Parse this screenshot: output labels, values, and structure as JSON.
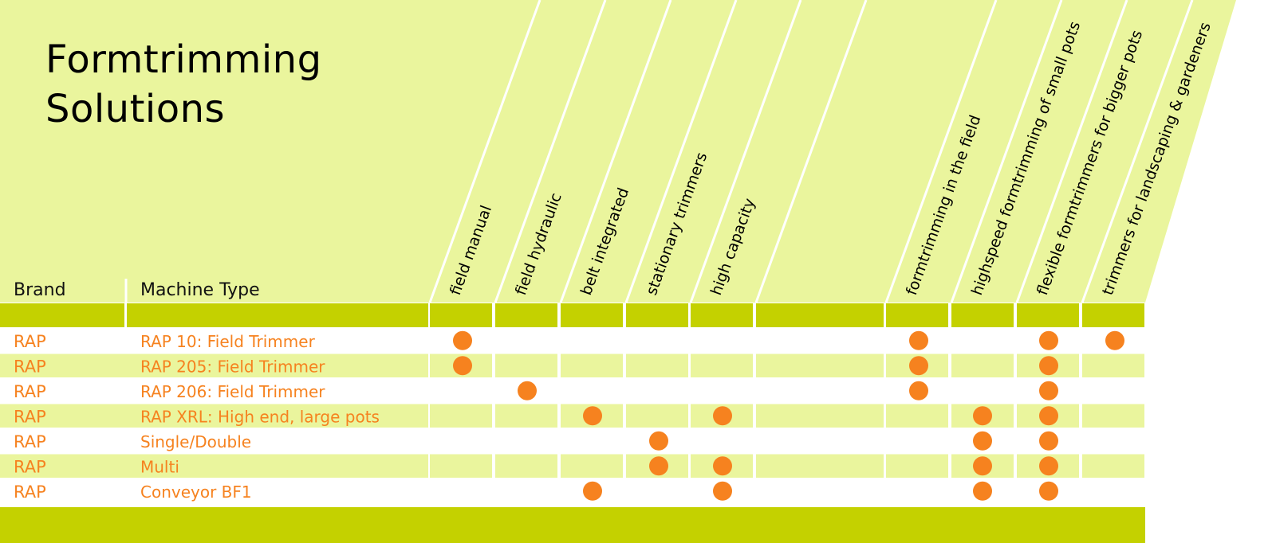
{
  "title_lines": [
    "Formtrimming",
    "Solutions"
  ],
  "headers": {
    "brand": "Brand",
    "machine_type": "Machine Type"
  },
  "columns": [
    "field manual",
    "field hydraulic",
    "belt integrated",
    "stationary trimmers",
    "high capacity",
    "",
    "formtrimming in the field",
    "highspeed formtrimming of small pots",
    "flexible formtrimmers for bigger pots",
    "trimmers for landscaping & gardeners"
  ],
  "rows": [
    {
      "brand": "RAP",
      "machine": "RAP 10: Field Trimmer",
      "marks": [
        1,
        0,
        0,
        0,
        0,
        0,
        1,
        0,
        1,
        1
      ]
    },
    {
      "brand": "RAP",
      "machine": "RAP 205: Field Trimmer",
      "marks": [
        1,
        0,
        0,
        0,
        0,
        0,
        1,
        0,
        1,
        0
      ]
    },
    {
      "brand": "RAP",
      "machine": "RAP 206: Field Trimmer",
      "marks": [
        0,
        1,
        0,
        0,
        0,
        0,
        1,
        0,
        1,
        0
      ]
    },
    {
      "brand": "RAP",
      "machine": "RAP XRL: High end, large pots",
      "marks": [
        0,
        0,
        1,
        0,
        1,
        0,
        0,
        1,
        1,
        0
      ]
    },
    {
      "brand": "RAP",
      "machine": "Single/Double",
      "marks": [
        0,
        0,
        0,
        1,
        0,
        0,
        0,
        1,
        1,
        0
      ]
    },
    {
      "brand": "RAP",
      "machine": "Multi",
      "marks": [
        0,
        0,
        0,
        1,
        1,
        0,
        0,
        1,
        1,
        0
      ]
    },
    {
      "brand": "RAP",
      "machine": "Conveyor BF1",
      "marks": [
        0,
        0,
        1,
        0,
        1,
        0,
        0,
        1,
        1,
        0
      ]
    }
  ],
  "colors": {
    "header_bg": "#eaf59d",
    "band": "#c4d100",
    "row_alt": "#eaf59d",
    "row_plain": "#ffffff",
    "mark": "#f6821f",
    "orange_text": "#f6821f"
  }
}
